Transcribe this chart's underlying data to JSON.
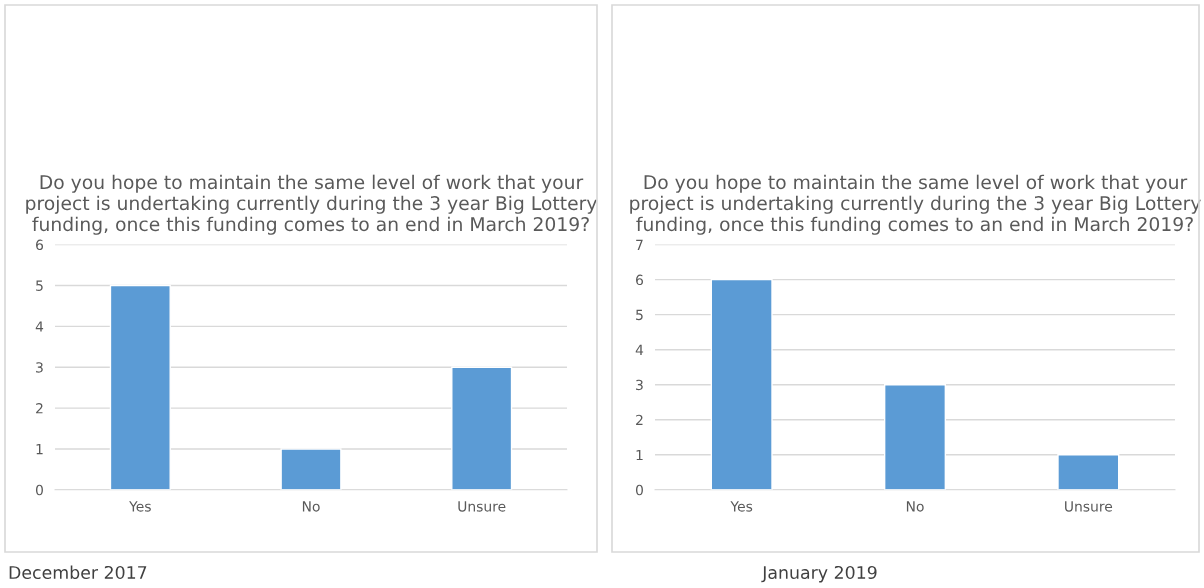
{
  "chart_data": [
    {
      "type": "bar",
      "title": "Do you hope to maintain the same level of work that your project is undertaking currently during the 3 year Big Lottery funding, once this funding comes to an end in March 2019?",
      "categories": [
        "Yes",
        "No",
        "Unsure"
      ],
      "values": [
        5,
        1,
        3
      ],
      "color": "#5b9bd5",
      "ylim": [
        0,
        6
      ],
      "yticks": [
        0,
        1,
        2,
        3,
        4,
        5,
        6
      ],
      "grid": "y",
      "annotations": [
        "December 2017"
      ]
    },
    {
      "type": "bar",
      "title": "Do you hope to maintain the same level of work that your project is undertaking currently during the 3 year Big Lottery funding, once this funding comes to an end in March 2019?",
      "categories": [
        "Yes",
        "No",
        "Unsure"
      ],
      "values": [
        6,
        3,
        1
      ],
      "color": "#5b9bd5",
      "ylim": [
        0,
        7
      ],
      "yticks": [
        0,
        1,
        2,
        3,
        4,
        5,
        6,
        7
      ],
      "grid": "y",
      "annotations": [
        "January 2019"
      ]
    }
  ]
}
